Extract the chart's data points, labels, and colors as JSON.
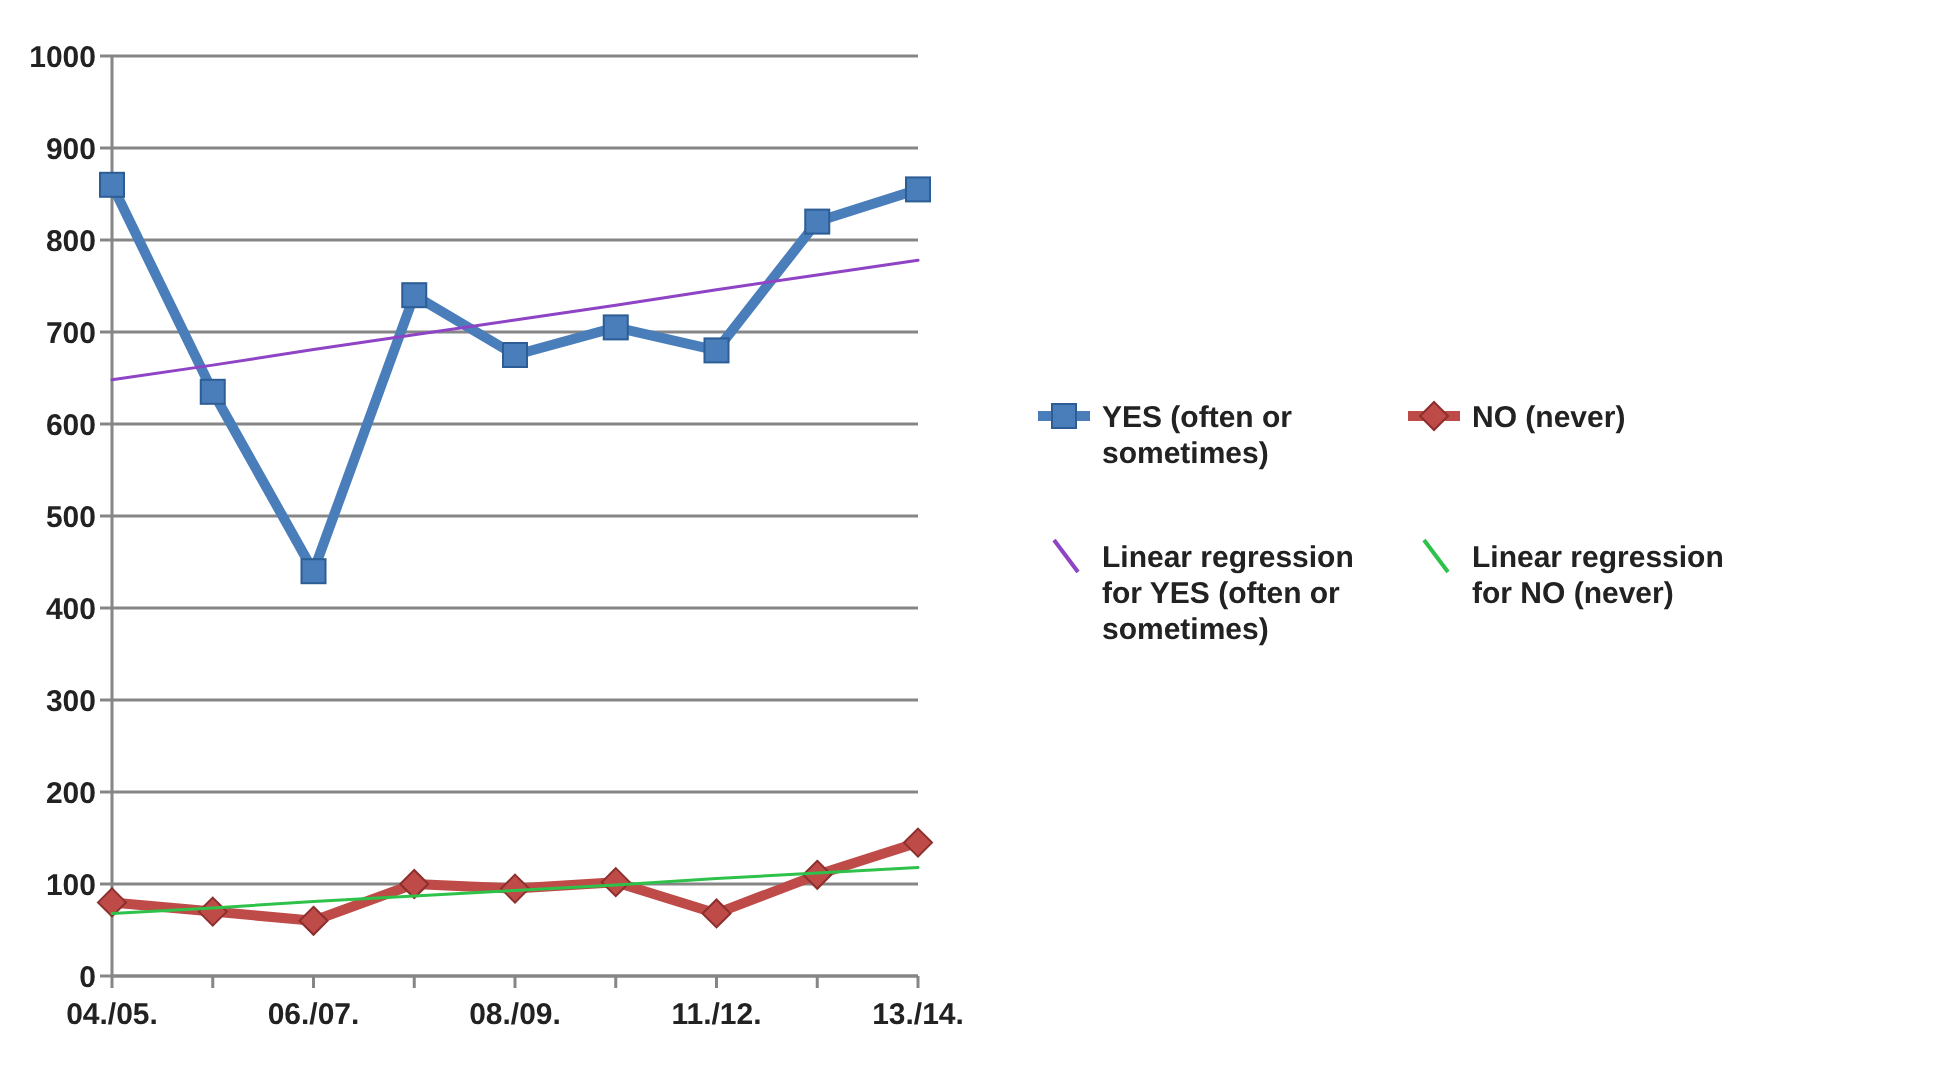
{
  "chart_data": {
    "type": "line",
    "categories": [
      "04./05.",
      null,
      "06./07.",
      null,
      "08./09.",
      null,
      "11./12.",
      null,
      "13./14."
    ],
    "series": [
      {
        "name": "YES (often or sometimes)",
        "color": "#4a7ebb",
        "marker": "square",
        "values": [
          860,
          635,
          440,
          740,
          675,
          705,
          680,
          820,
          855
        ]
      },
      {
        "name": "NO (never)",
        "color": "#be4b48",
        "marker": "diamond",
        "values": [
          80,
          70,
          60,
          100,
          95,
          102,
          68,
          110,
          145
        ]
      },
      {
        "name": "Linear regression for YES (often or sometimes)",
        "color": "#8e44c4",
        "marker": "none",
        "values": [
          648,
          664,
          681,
          697,
          713,
          729,
          746,
          762,
          778
        ]
      },
      {
        "name": "Linear regression for NO (never)",
        "color": "#2ec24a",
        "marker": "none",
        "values": [
          68,
          74,
          81,
          87,
          93,
          99,
          106,
          112,
          118
        ]
      }
    ],
    "ylim": [
      0,
      1000
    ],
    "yticks": [
      0,
      100,
      200,
      300,
      400,
      500,
      600,
      700,
      800,
      900,
      1000
    ],
    "grid": "y",
    "legend": "right"
  }
}
